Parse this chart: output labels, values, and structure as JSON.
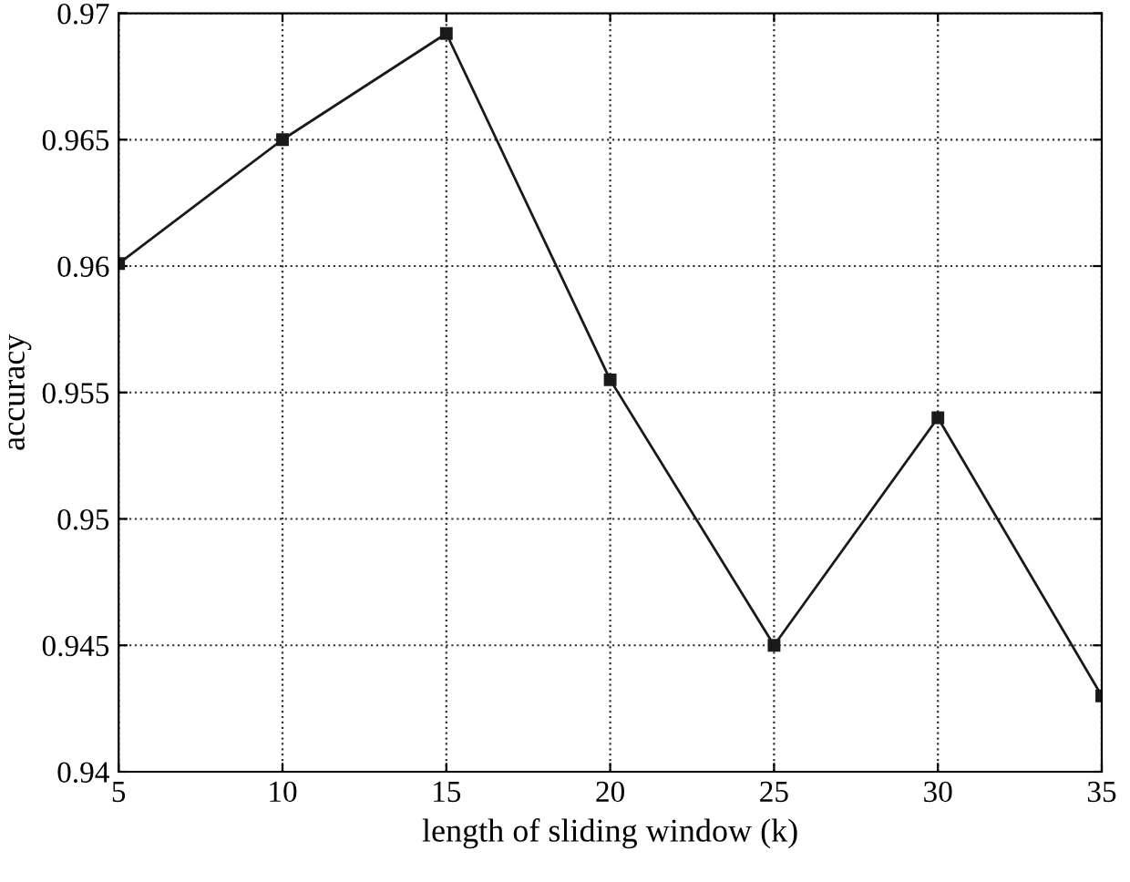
{
  "chart_data": {
    "type": "line",
    "xlabel": "length of sliding window (k)",
    "ylabel": "accuracy",
    "x": [
      5,
      10,
      15,
      20,
      25,
      30,
      35
    ],
    "series": [
      {
        "color": "#1a1a1a",
        "values": [
          0.9601,
          0.965,
          0.9692,
          0.9555,
          0.945,
          0.954,
          0.943
        ]
      }
    ],
    "xlim": [
      5,
      35
    ],
    "xticks": [
      5,
      10,
      15,
      20,
      25,
      30,
      35
    ],
    "ylim": [
      0.94,
      0.97
    ],
    "yticks": [
      0.94,
      0.945,
      0.95,
      0.955,
      0.96,
      0.965,
      0.97
    ],
    "grid": true,
    "marker": "square",
    "line_style": "solid"
  }
}
